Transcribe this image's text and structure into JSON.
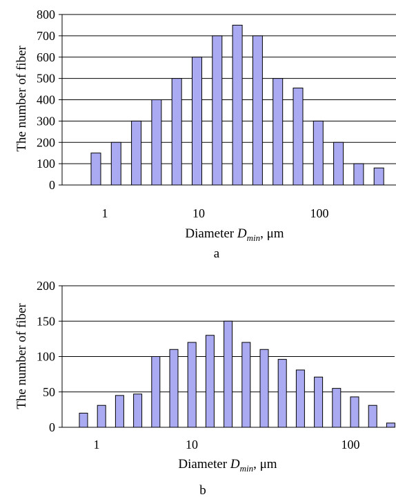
{
  "colors": {
    "bar_fill": "#aaaaf2",
    "bar_stroke": "#000000",
    "xtick_text": "#3b1f5e",
    "grid": "#000000"
  },
  "chart_data": [
    {
      "type": "bar",
      "panel_label": "a",
      "ylabel": "The number of fiber",
      "xlabel": {
        "prefix": "Diameter ",
        "symbol": "D",
        "subscript": "min",
        "suffix": ",  μm"
      },
      "x_scale": "log",
      "xtick_labels": [
        "1",
        "10",
        "100"
      ],
      "ylim": [
        0,
        800
      ],
      "yticks": [
        0,
        100,
        200,
        300,
        400,
        500,
        600,
        700,
        800
      ],
      "grid": true,
      "values": [
        150,
        200,
        300,
        400,
        500,
        600,
        700,
        750,
        700,
        500,
        455,
        300,
        200,
        100,
        80
      ]
    },
    {
      "type": "bar",
      "panel_label": "b",
      "ylabel": "The number of fiber",
      "xlabel": {
        "prefix": "Diameter ",
        "symbol": "D",
        "subscript": "min",
        "suffix": ",  μm"
      },
      "x_scale": "log",
      "xtick_labels": [
        "1",
        "10",
        "100"
      ],
      "ylim": [
        0,
        200
      ],
      "yticks": [
        0,
        50,
        100,
        150,
        200
      ],
      "grid": true,
      "values": [
        20,
        31,
        45,
        47,
        100,
        110,
        120,
        130,
        150,
        120,
        110,
        96,
        81,
        71,
        55,
        43,
        31,
        6
      ]
    }
  ]
}
